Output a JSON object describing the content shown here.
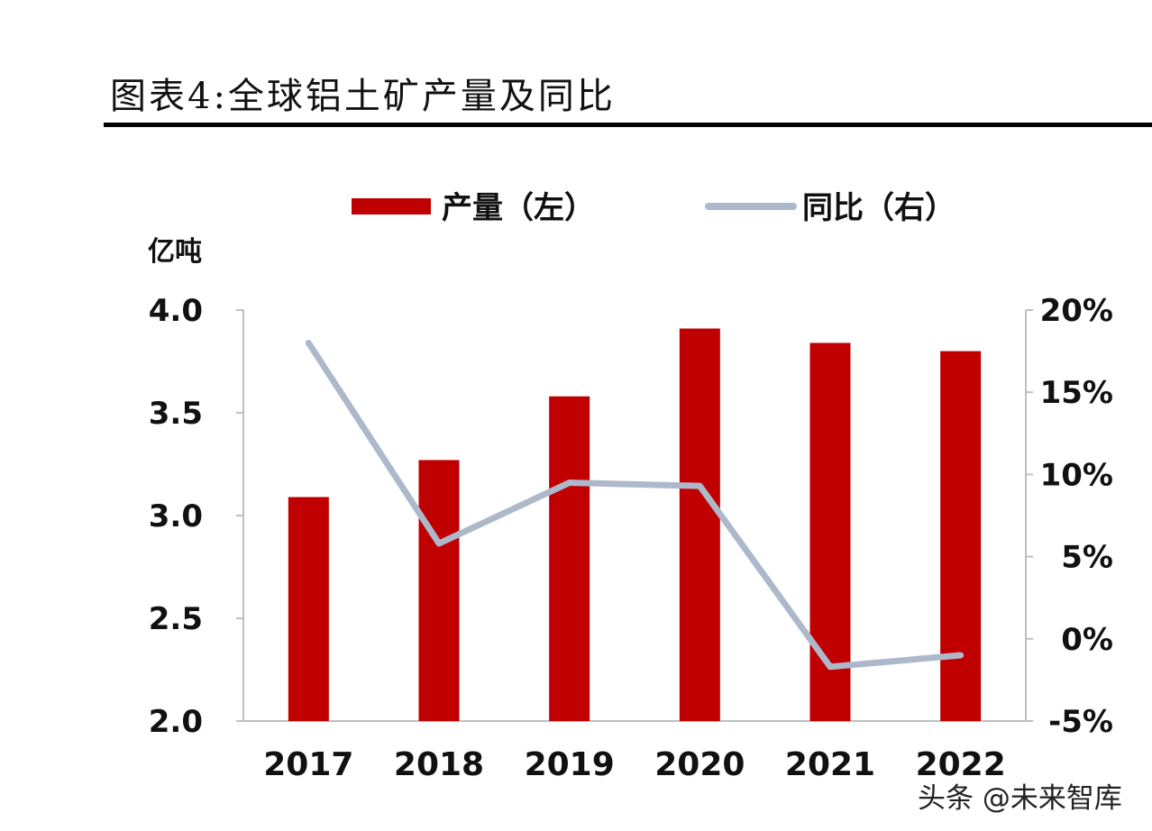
{
  "title": "图表4:全球铝土矿产量及同比",
  "watermark": "头条 @未来智库",
  "colors": {
    "bar": "#C00000",
    "line": "#ADB9CA",
    "axis": "#BFBFBF"
  },
  "chart_data": {
    "type": "bar",
    "categories": [
      "2017",
      "2018",
      "2019",
      "2020",
      "2021",
      "2022"
    ],
    "series": [
      {
        "name": "产量（左）",
        "type": "bar",
        "axis": "left",
        "values": [
          3.09,
          3.27,
          3.58,
          3.91,
          3.84,
          3.8
        ]
      },
      {
        "name": "同比（右）",
        "type": "line",
        "axis": "right",
        "values": [
          18.0,
          5.8,
          9.5,
          9.3,
          -1.7,
          -1.0
        ]
      }
    ],
    "ylabel": "亿吨",
    "ylim": [
      2.0,
      4.0
    ],
    "yticks": [
      "2.0",
      "2.5",
      "3.0",
      "3.5",
      "4.0"
    ],
    "y2lim": [
      -5,
      20
    ],
    "y2ticks": [
      "-5%",
      "0%",
      "5%",
      "10%",
      "15%",
      "20%"
    ],
    "legend": "top-center",
    "grid": false
  }
}
